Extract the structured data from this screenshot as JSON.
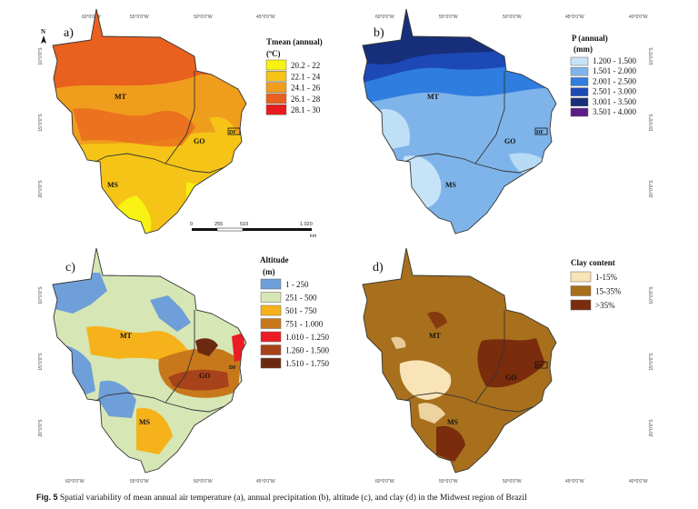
{
  "map_panels": [
    {
      "letter": "a)",
      "legend_title_1": "Tmean (annual)",
      "legend_title_2": "(ºC)",
      "legend": [
        {
          "label": "20.2 - 22",
          "color": "#f7f212"
        },
        {
          "label": "22.1 - 24",
          "color": "#f5c417"
        },
        {
          "label": "24.1 - 26",
          "color": "#ef9d1c"
        },
        {
          "label": "26.1 - 28",
          "color": "#e9601f"
        },
        {
          "label": "28.1 - 30",
          "color": "#e81a1d"
        }
      ],
      "regions": [
        "MT",
        "GO",
        "MS",
        "DF"
      ],
      "top_ticks": [
        "60°0'0\"W",
        "55°0'0\"W",
        "50°0'0\"W",
        "45°0'0\"W"
      ],
      "left_ticks": [
        "10°0'0\"S",
        "15°0'0\"S",
        "20°0'0\"S"
      ]
    },
    {
      "letter": "b)",
      "legend_title_1": "P (annual)",
      "legend_title_2": "(mm)",
      "legend": [
        {
          "label": "1.200 - 1.500",
          "color": "#c6e3f7"
        },
        {
          "label": "1.501 - 2.000",
          "color": "#7fb4ea"
        },
        {
          "label": "2.001 - 2.500",
          "color": "#2f7ddf"
        },
        {
          "label": "2.501 - 3.000",
          "color": "#1d49b6"
        },
        {
          "label": "3.001 - 3.500",
          "color": "#172f7a"
        },
        {
          "label": "3.501 - 4.000",
          "color": "#5a1c86"
        }
      ],
      "regions": [
        "MT",
        "GO",
        "MS",
        "DF"
      ],
      "top_ticks": [
        "60°0'0\"W",
        "55°0'0\"W",
        "50°0'0\"W",
        "45°0'0\"W",
        "40°0'0\"W"
      ],
      "right_ticks": [
        "10°0'0\"S",
        "15°0'0\"S",
        "20°0'0\"S"
      ]
    },
    {
      "letter": "c)",
      "legend_title_1": "Altitude",
      "legend_title_2": "(m)",
      "legend": [
        {
          "label": "1 - 250",
          "color": "#6f9fd8"
        },
        {
          "label": "251 - 500",
          "color": "#d6e6b5"
        },
        {
          "label": "501 - 750",
          "color": "#f6b21a"
        },
        {
          "label": "751 - 1.000",
          "color": "#c7781b"
        },
        {
          "label": "1.010 - 1.250",
          "color": "#ec1c24"
        },
        {
          "label": "1.260 - 1.500",
          "color": "#a8421a"
        },
        {
          "label": "1.510 - 1.750",
          "color": "#6b2a10"
        }
      ],
      "regions": [
        "MT",
        "GO",
        "MS",
        "DF"
      ],
      "left_ticks": [
        "10°0'0\"S",
        "15°0'0\"S",
        "20°0'0\"S"
      ],
      "bottom_ticks": [
        "60°0'0\"W",
        "55°0'0\"W",
        "50°0'0\"W",
        "45°0'0\"W"
      ]
    },
    {
      "letter": "d)",
      "legend_title_1": "Clay content",
      "legend": [
        {
          "label": "1-15%",
          "color": "#f8e4b6"
        },
        {
          "label": "15-35%",
          "color": "#a8701c"
        },
        {
          "label": ">35%",
          "color": "#7a2c0c"
        }
      ],
      "regions": [
        "MT",
        "GO",
        "MS",
        "DF"
      ],
      "right_ticks": [
        "10°0'0\"S",
        "15°0'0\"S",
        "20°0'0\"S"
      ],
      "bottom_ticks": [
        "60°0'0\"W",
        "55°0'0\"W",
        "50°0'0\"W",
        "45°0'0\"W",
        "40°0'0\"W"
      ]
    }
  ],
  "scale_bar": {
    "labels": [
      "0",
      "255",
      "510",
      "1.020"
    ],
    "unit": "km"
  },
  "caption": {
    "label": "Fig. 5",
    "text": " Spatial variability of mean annual air temperature (a), annual precipitation (b), altitude (c), and clay (d) in the Midwest region of Brazil"
  }
}
